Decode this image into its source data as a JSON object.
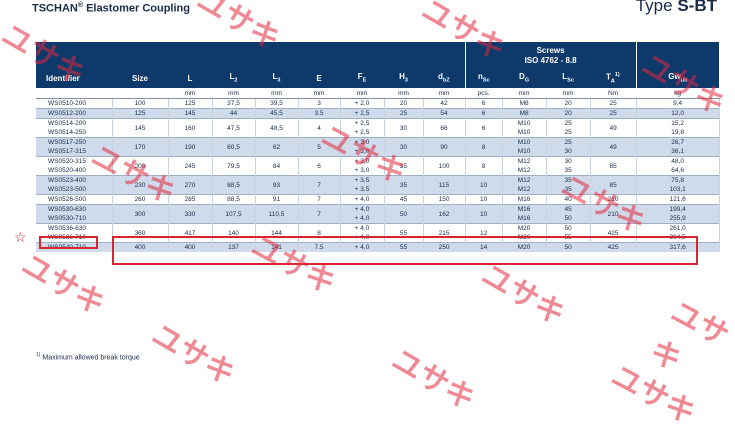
{
  "header": {
    "title": "TSCHAN",
    "title_mark": "®",
    "title_rest": " Elastomer Coupling",
    "type_prefix": "Type ",
    "type_code": "S-BT"
  },
  "table": {
    "columns": [
      {
        "label": "Identifier",
        "sub": ""
      },
      {
        "label": "Size",
        "sub": ""
      },
      {
        "label": "L",
        "sub": ""
      },
      {
        "label": "L",
        "sub": "2"
      },
      {
        "label": "L",
        "sub": "3"
      },
      {
        "label": "E",
        "sub": ""
      },
      {
        "label": "F",
        "sub": "E"
      },
      {
        "label": "H",
        "sub": "3"
      },
      {
        "label": "d",
        "sub": "bZ"
      },
      {
        "label": "n",
        "sub": "Sc"
      },
      {
        "label": "D",
        "sub": "G"
      },
      {
        "label": "L",
        "sub": "Sc"
      },
      {
        "label": "T",
        "sub": "A",
        "sup": "1)"
      },
      {
        "label": "Gw",
        "sub": "ub"
      }
    ],
    "screws_title": "Screws",
    "screws_standard": "ISO 4762 - 8.8",
    "units": [
      "",
      "",
      "mm",
      "mm",
      "mm",
      "mm",
      "mm",
      "mm",
      "mm",
      "pcs.",
      "mm",
      "mm",
      "Nm",
      "kg"
    ],
    "groups": [
      {
        "size": "100",
        "L": "125",
        "L2": "37,5",
        "L3": "39,5",
        "E": "3",
        "H3": "20",
        "dbz": "42",
        "nsc": "6",
        "TA": "25",
        "rows": [
          {
            "id": "WS0510-200",
            "FE": "+ 2,0",
            "DG": "M8",
            "Lsc": "20",
            "Gw": "9,4"
          }
        ]
      },
      {
        "size": "125",
        "L": "145",
        "L2": "44",
        "L3": "45,5",
        "E": "3.5",
        "H3": "25",
        "dbz": "54",
        "nsc": "6",
        "TA": "25",
        "rows": [
          {
            "id": "WS0512-200",
            "FE": "+ 2,5",
            "DG": "M8",
            "Lsc": "20",
            "Gw": "12,0"
          }
        ]
      },
      {
        "size": "145",
        "L": "160",
        "L2": "47,5",
        "L3": "48,5",
        "E": "4",
        "H3": "30",
        "dbz": "66",
        "nsc": "6",
        "TA": "49",
        "rows": [
          {
            "id": "WS0514-200",
            "FE": "+ 2,5",
            "DG": "M10",
            "Lsc": "25",
            "Gw": "15,2"
          },
          {
            "id": "WS0514-250",
            "FE": "+ 2,5",
            "DG": "M10",
            "Lsc": "25",
            "Gw": "19,8"
          }
        ]
      },
      {
        "size": "170",
        "L": "190",
        "L2": "60,5",
        "L3": "62",
        "E": "5",
        "H3": "30",
        "dbz": "90",
        "nsc": "8",
        "TA": "49",
        "rows": [
          {
            "id": "WS0517-250",
            "FE": "+ 3,0",
            "DG": "M10",
            "Lsc": "25",
            "Gw": "26,7"
          },
          {
            "id": "WS0517-315",
            "FE": "+ 3,0",
            "DG": "M10",
            "Lsc": "30",
            "Gw": "36,1"
          }
        ]
      },
      {
        "size": "200",
        "L": "245",
        "L2": "79,5",
        "L3": "84",
        "E": "6",
        "H3": "35",
        "dbz": "100",
        "nsc": "8",
        "TA": "85",
        "rows": [
          {
            "id": "WS0520-315",
            "FE": "+ 3,0",
            "DG": "M12",
            "Lsc": "30",
            "Gw": "48,0"
          },
          {
            "id": "WS0520-400",
            "FE": "+ 3,0",
            "DG": "M12",
            "Lsc": "35",
            "Gw": "64,6"
          }
        ]
      },
      {
        "size": "230",
        "L": "270",
        "L2": "88,5",
        "L3": "93",
        "E": "7",
        "H3": "35",
        "dbz": "115",
        "nsc": "10",
        "TA": "85",
        "rows": [
          {
            "id": "WS0523-400",
            "FE": "+ 3,5",
            "DG": "M12",
            "Lsc": "35",
            "Gw": "75,8"
          },
          {
            "id": "WS0523-500",
            "FE": "+ 3,5",
            "DG": "M12",
            "Lsc": "35",
            "Gw": "103,1"
          }
        ]
      },
      {
        "size": "260",
        "L": "285",
        "L2": "88,5",
        "L3": "91",
        "E": "7",
        "H3": "45",
        "dbz": "150",
        "nsc": "10",
        "TA": "210",
        "rows": [
          {
            "id": "WS0526-500",
            "FE": "+ 4,0",
            "DG": "M16",
            "Lsc": "40",
            "Gw": "121,6"
          }
        ]
      },
      {
        "size": "300",
        "L": "330",
        "L2": "107,5",
        "L3": "110,5",
        "E": "7",
        "H3": "50",
        "dbz": "162",
        "nsc": "10",
        "TA": "210",
        "rows": [
          {
            "id": "WS0530-630",
            "FE": "+ 4,0",
            "DG": "M16",
            "Lsc": "45",
            "Gw": "199,4"
          },
          {
            "id": "WS0530-710",
            "FE": "+ 4,0",
            "DG": "M16",
            "Lsc": "50",
            "Gw": "255,9"
          }
        ]
      },
      {
        "size": "360",
        "L": "417",
        "L2": "140",
        "L3": "144",
        "E": "8",
        "H3": "55",
        "dbz": "215",
        "nsc": "12",
        "TA": "425",
        "rows": [
          {
            "id": "WS0536-630",
            "FE": "+ 4,0",
            "DG": "M20",
            "Lsc": "50",
            "Gw": "261,0"
          },
          {
            "id": "WS0536-710",
            "FE": "+ 4,0",
            "DG": "M20",
            "Lsc": "55",
            "Gw": "304,5"
          }
        ]
      },
      {
        "size": "400",
        "L": "400",
        "L2": "137",
        "L3": "141",
        "E": "7.5",
        "H3": "55",
        "dbz": "250",
        "nsc": "14",
        "TA": "425",
        "rows": [
          {
            "id": "WS0540-710",
            "FE": "+ 4,0",
            "DG": "M20",
            "Lsc": "50",
            "Gw": "317,6"
          }
        ]
      }
    ]
  },
  "footnote": {
    "mark": "1)",
    "text": " Maximum allowed break torque"
  },
  "annotation": {
    "color": "#d9262e",
    "icon": "star-outline-icon",
    "highlighted_identifier": "WS0523-400"
  },
  "watermark": {
    "text": "ユサキ",
    "color": "#e1283c"
  }
}
